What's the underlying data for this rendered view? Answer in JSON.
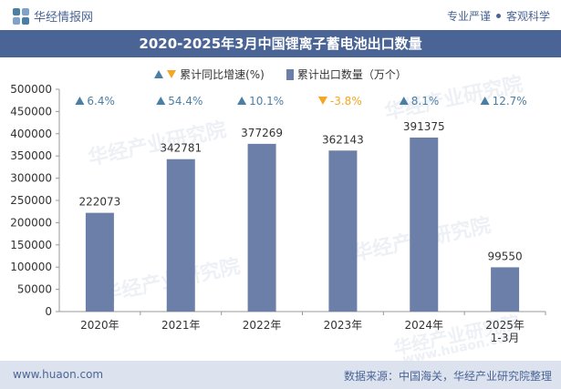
{
  "header": {
    "brand": "华经情报网",
    "tagline_left": "专业严谨",
    "tagline_right": "客观科学"
  },
  "title": "2020-2025年3月中国锂离子蓄电池出口数量",
  "legend": {
    "growth_label": "累计同比增速(%)",
    "count_label": "累计出口数量（万个）"
  },
  "watermark": {
    "text": "华经产业研究院",
    "url_text": "www.huaon.com"
  },
  "footer": {
    "url": "www.huaon.com",
    "source": "数据来源：中国海关，华经产业研究院整理"
  },
  "colors": {
    "bar": "#6b7fa8",
    "up": "#4a7fa5",
    "down": "#f5a623",
    "brand": "#4a6595"
  },
  "chart_data": {
    "type": "bar",
    "categories": [
      "2020年",
      "2021年",
      "2022年",
      "2023年",
      "2024年",
      "2025年\n1-3月"
    ],
    "series": [
      {
        "name": "累计出口数量（万个）",
        "values": [
          222073,
          342781,
          377269,
          362143,
          391375,
          99550
        ]
      }
    ],
    "growth": {
      "name": "累计同比增速(%)",
      "values": [
        6.4,
        54.4,
        10.1,
        -3.8,
        8.1,
        12.7
      ],
      "labels": [
        "6.4%",
        "54.4%",
        "10.1%",
        "-3.8%",
        "8.1%",
        "12.7%"
      ]
    },
    "data_labels": [
      "222073",
      "342781",
      "377269",
      "362143",
      "391375",
      "99550"
    ],
    "yticks": [
      "0",
      "50000",
      "100000",
      "150000",
      "200000",
      "250000",
      "300000",
      "350000",
      "400000",
      "450000",
      "500000"
    ],
    "ylim": [
      0,
      500000
    ],
    "grid": false,
    "legend_position": "top-center"
  }
}
